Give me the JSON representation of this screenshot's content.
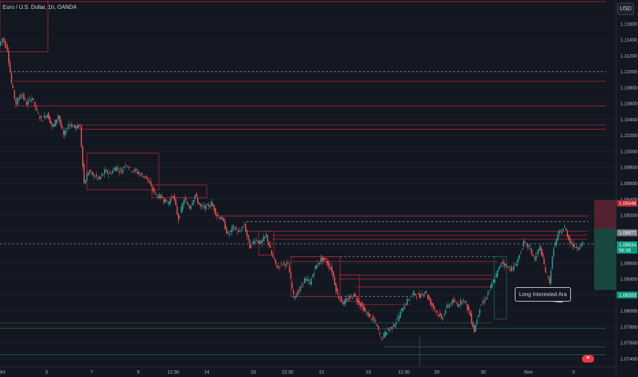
{
  "header": {
    "title": "Euro / U.S. Dollar, 1h, OANDA",
    "currency": "USD"
  },
  "annotation": {
    "label": "Long Interested Ara"
  },
  "colors": {
    "background": "#131722",
    "up": "#26a69a",
    "down": "#ef5350",
    "resistance": "#b22833",
    "support": "#1f6b4a",
    "dashed": "#9598a1"
  },
  "chart_data": {
    "type": "candlestick",
    "title": "Euro / U.S. Dollar, 1h, OANDA",
    "ylim": [
      1.073,
      1.119
    ],
    "y_ticks": [
      1.116,
      1.114,
      1.112,
      1.11,
      1.108,
      1.106,
      1.104,
      1.102,
      1.1,
      1.098,
      1.096,
      1.094,
      1.092,
      1.09,
      1.088,
      1.086,
      1.084,
      1.082,
      1.08,
      1.078,
      1.076,
      1.074
    ],
    "y_tick_labels": [
      "1.11600",
      "1.11400",
      "1.11200",
      "1.11000",
      "1.10800",
      "1.10600",
      "1.10400",
      "1.10200",
      "1.10000",
      "1.09800",
      "1.09600",
      "1.09400",
      "1.09200",
      "1.09000",
      "1.08800",
      "1.08600",
      "1.08400",
      "1.08200",
      "1.08000",
      "1.07800",
      "1.07600",
      "1.07400"
    ],
    "x_tick_labels": [
      "Oct",
      "3",
      "7",
      "9",
      "12:30",
      "14",
      "16",
      "12:30",
      "21",
      "23",
      "12:30",
      "28",
      "30",
      "Nov",
      "5"
    ],
    "price_tags": [
      {
        "label": "1.09348",
        "value": 1.0935,
        "color": "#b22833"
      },
      {
        "label": "1.08977",
        "value": 1.0898,
        "color": "#787b86"
      },
      {
        "label": "1.08834",
        "sublabel": "56:38",
        "value": 1.0883,
        "color": "#089981"
      },
      {
        "label": "1.08203",
        "value": 1.082,
        "color": "#089981"
      }
    ],
    "path_points": [
      [
        0,
        1.1133
      ],
      [
        5,
        1.1142
      ],
      [
        12,
        1.1128
      ],
      [
        18,
        1.1085
      ],
      [
        25,
        1.106
      ],
      [
        32,
        1.1073
      ],
      [
        40,
        1.106
      ],
      [
        48,
        1.1068
      ],
      [
        55,
        1.105
      ],
      [
        62,
        1.104
      ],
      [
        70,
        1.1047
      ],
      [
        78,
        1.103
      ],
      [
        86,
        1.1045
      ],
      [
        94,
        1.102
      ],
      [
        102,
        1.1035
      ],
      [
        110,
        1.103
      ],
      [
        118,
        1.1032
      ],
      [
        124,
        1.096
      ],
      [
        130,
        1.0975
      ],
      [
        138,
        1.097
      ],
      [
        146,
        1.0965
      ],
      [
        154,
        1.0975
      ],
      [
        162,
        1.0972
      ],
      [
        170,
        1.098
      ],
      [
        178,
        1.0975
      ],
      [
        185,
        1.0985
      ],
      [
        192,
        1.0978
      ],
      [
        200,
        1.0975
      ],
      [
        208,
        1.097
      ],
      [
        215,
        1.0968
      ],
      [
        222,
        1.0955
      ],
      [
        230,
        1.0945
      ],
      [
        238,
        1.0942
      ],
      [
        246,
        1.0935
      ],
      [
        254,
        1.0945
      ],
      [
        262,
        1.0915
      ],
      [
        270,
        1.094
      ],
      [
        278,
        1.093
      ],
      [
        286,
        1.0945
      ],
      [
        294,
        1.093
      ],
      [
        302,
        1.093
      ],
      [
        310,
        1.0935
      ],
      [
        318,
        1.092
      ],
      [
        326,
        1.0915
      ],
      [
        334,
        1.0895
      ],
      [
        342,
        1.0905
      ],
      [
        350,
        1.0898
      ],
      [
        358,
        1.0908
      ],
      [
        366,
        1.088
      ],
      [
        374,
        1.089
      ],
      [
        382,
        1.0885
      ],
      [
        390,
        1.0895
      ],
      [
        398,
        1.087
      ],
      [
        406,
        1.0855
      ],
      [
        414,
        1.086
      ],
      [
        422,
        1.0858
      ],
      [
        430,
        1.0818
      ],
      [
        438,
        1.0825
      ],
      [
        446,
        1.084
      ],
      [
        454,
        1.0835
      ],
      [
        462,
        1.0855
      ],
      [
        470,
        1.0865
      ],
      [
        478,
        1.0862
      ],
      [
        486,
        1.085
      ],
      [
        494,
        1.082
      ],
      [
        502,
        1.081
      ],
      [
        510,
        1.0815
      ],
      [
        518,
        1.082
      ],
      [
        526,
        1.081
      ],
      [
        534,
        1.08
      ],
      [
        542,
        1.0792
      ],
      [
        550,
        1.0785
      ],
      [
        558,
        1.0765
      ],
      [
        566,
        1.0775
      ],
      [
        574,
        1.078
      ],
      [
        582,
        1.079
      ],
      [
        590,
        1.0805
      ],
      [
        598,
        1.0815
      ],
      [
        606,
        1.0822
      ],
      [
        614,
        1.0818
      ],
      [
        622,
        1.0825
      ],
      [
        630,
        1.081
      ],
      [
        638,
        1.08
      ],
      [
        646,
        1.079
      ],
      [
        654,
        1.0805
      ],
      [
        662,
        1.0812
      ],
      [
        670,
        1.0808
      ],
      [
        678,
        1.0815
      ],
      [
        686,
        1.08
      ],
      [
        694,
        1.0775
      ],
      [
        702,
        1.0805
      ],
      [
        710,
        1.0815
      ],
      [
        718,
        1.083
      ],
      [
        726,
        1.0845
      ],
      [
        734,
        1.0862
      ],
      [
        742,
        1.0855
      ],
      [
        750,
        1.0852
      ],
      [
        758,
        1.0865
      ],
      [
        766,
        1.0885
      ],
      [
        774,
        1.088
      ],
      [
        782,
        1.0865
      ],
      [
        790,
        1.088
      ],
      [
        798,
        1.085
      ],
      [
        804,
        1.0837
      ],
      [
        810,
        1.088
      ],
      [
        818,
        1.0898
      ],
      [
        826,
        1.0905
      ],
      [
        832,
        1.089
      ],
      [
        838,
        1.0882
      ],
      [
        846,
        1.088
      ],
      [
        852,
        1.0884
      ]
    ],
    "horizontal_lines": [
      {
        "y": 1.1188,
        "x1": 0,
        "x2": 885,
        "kind": "resistance"
      },
      {
        "y": 1.11,
        "x1": 20,
        "x2": 885,
        "kind": "dashed"
      },
      {
        "y": 1.1088,
        "x1": 20,
        "x2": 885,
        "kind": "resistance"
      },
      {
        "y": 1.1057,
        "x1": 20,
        "x2": 885,
        "kind": "resistance"
      },
      {
        "y": 1.1033,
        "x1": 115,
        "x2": 885,
        "kind": "resistance"
      },
      {
        "y": 1.1028,
        "x1": 115,
        "x2": 885,
        "kind": "resistance"
      },
      {
        "y": 1.0919,
        "x1": 320,
        "x2": 860,
        "kind": "resistance"
      },
      {
        "y": 1.0912,
        "x1": 360,
        "x2": 860,
        "kind": "dashed"
      },
      {
        "y": 1.09,
        "x1": 360,
        "x2": 858,
        "kind": "resistance"
      },
      {
        "y": 1.0895,
        "x1": 398,
        "x2": 858,
        "kind": "resistance"
      },
      {
        "y": 1.089,
        "x1": 398,
        "x2": 858,
        "kind": "resistance"
      },
      {
        "y": 1.0884,
        "x1": 0,
        "x2": 885,
        "kind": "dashed"
      },
      {
        "y": 1.0868,
        "x1": 425,
        "x2": 726,
        "kind": "dashed"
      },
      {
        "y": 1.0862,
        "x1": 425,
        "x2": 726,
        "kind": "resistance"
      },
      {
        "y": 1.0845,
        "x1": 495,
        "x2": 720,
        "kind": "resistance"
      },
      {
        "y": 1.084,
        "x1": 495,
        "x2": 720,
        "kind": "resistance"
      },
      {
        "y": 1.083,
        "x1": 520,
        "x2": 720,
        "kind": "resistance"
      },
      {
        "y": 1.0818,
        "x1": 425,
        "x2": 600,
        "kind": "dashed"
      },
      {
        "y": 1.0808,
        "x1": 520,
        "x2": 600,
        "kind": "resistance"
      },
      {
        "y": 1.0785,
        "x1": 0,
        "x2": 720,
        "kind": "support"
      },
      {
        "y": 1.0778,
        "x1": 0,
        "x2": 885,
        "kind": "support"
      },
      {
        "y": 1.0755,
        "x1": 560,
        "x2": 885,
        "kind": "support"
      },
      {
        "y": 1.0745,
        "x1": 0,
        "x2": 885,
        "kind": "support"
      }
    ],
    "boxes": [
      {
        "x1": 0,
        "x2": 70,
        "y1": 1.12,
        "y2": 1.1125,
        "kind": "resistance"
      },
      {
        "x1": 127,
        "x2": 232,
        "y1": 1.0998,
        "y2": 1.0952,
        "kind": "resistance"
      },
      {
        "x1": 222,
        "x2": 302,
        "y1": 1.0958,
        "y2": 1.0942,
        "kind": "resistance"
      },
      {
        "x1": 378,
        "x2": 400,
        "y1": 1.09,
        "y2": 1.087,
        "kind": "resistance"
      },
      {
        "x1": 425,
        "x2": 497,
        "y1": 1.0868,
        "y2": 1.0818,
        "kind": "resistance"
      },
      {
        "x1": 497,
        "x2": 525,
        "y1": 1.0845,
        "y2": 1.0812,
        "kind": "resistance"
      },
      {
        "x1": 722,
        "x2": 740,
        "y1": 1.0868,
        "y2": 1.079,
        "kind": "support"
      }
    ]
  }
}
